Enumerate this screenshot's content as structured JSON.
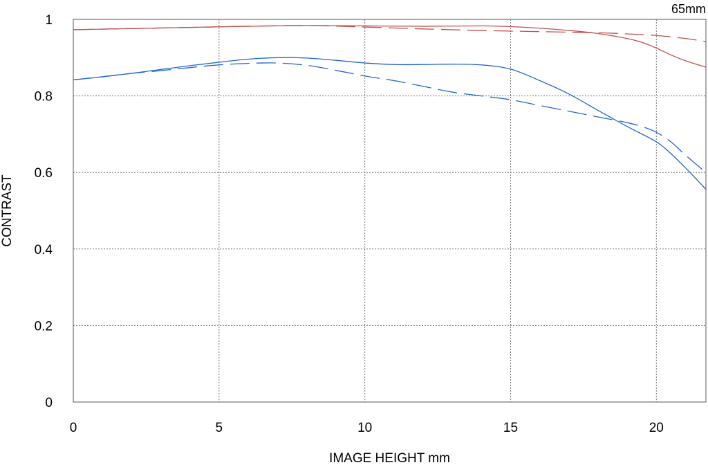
{
  "chart_data": {
    "type": "line",
    "title": "",
    "corner_label": "65mm",
    "xlabel": "IMAGE HEIGHT  mm",
    "ylabel": "CONTRAST",
    "xlim": [
      0,
      21.7
    ],
    "ylim": [
      0,
      1
    ],
    "x_ticks": [
      0,
      5,
      10,
      15,
      20
    ],
    "x_tick_labels": [
      "0",
      "5",
      "10",
      "15",
      "20"
    ],
    "y_ticks": [
      0,
      0.2,
      0.4,
      0.6,
      0.8,
      1
    ],
    "y_tick_labels": [
      "0",
      "0.2",
      "0.4",
      "0.6",
      "0.8",
      "1"
    ],
    "grid": true,
    "legend": "none",
    "series": [
      {
        "color": "#c0504d",
        "dashed": false,
        "x": [
          0,
          2,
          4,
          6,
          8,
          10,
          12,
          14,
          15,
          16,
          17,
          18,
          19,
          19.5,
          20,
          20.5,
          21,
          21.7
        ],
        "y": [
          0.973,
          0.976,
          0.979,
          0.982,
          0.984,
          0.983,
          0.982,
          0.983,
          0.981,
          0.977,
          0.971,
          0.963,
          0.95,
          0.94,
          0.925,
          0.907,
          0.892,
          0.875
        ]
      },
      {
        "color": "#c0504d",
        "dashed": true,
        "x": [
          0,
          2,
          4,
          6,
          8,
          10,
          12,
          14,
          16,
          18,
          19,
          20,
          21,
          21.7
        ],
        "y": [
          0.973,
          0.976,
          0.979,
          0.982,
          0.984,
          0.98,
          0.975,
          0.971,
          0.968,
          0.965,
          0.962,
          0.958,
          0.95,
          0.942
        ]
      },
      {
        "color": "#2266cc",
        "dashed": false,
        "x": [
          0,
          1,
          2,
          3,
          4,
          5,
          6,
          7,
          8,
          9,
          10,
          11,
          12,
          13,
          14,
          15,
          16,
          17,
          18,
          19,
          20,
          20.5,
          21,
          21.7
        ],
        "y": [
          0.842,
          0.85,
          0.859,
          0.869,
          0.879,
          0.888,
          0.896,
          0.9,
          0.899,
          0.893,
          0.886,
          0.882,
          0.882,
          0.883,
          0.881,
          0.87,
          0.84,
          0.805,
          0.762,
          0.72,
          0.68,
          0.649,
          0.612,
          0.556
        ]
      },
      {
        "color": "#2266cc",
        "dashed": true,
        "x": [
          0,
          1,
          2,
          3,
          4,
          5,
          6,
          7,
          8,
          9,
          10,
          11,
          12,
          13,
          14,
          15,
          16,
          17,
          18,
          19,
          19.5,
          20,
          20.5,
          21,
          21.7
        ],
        "y": [
          0.842,
          0.85,
          0.859,
          0.866,
          0.874,
          0.881,
          0.885,
          0.886,
          0.88,
          0.867,
          0.852,
          0.84,
          0.825,
          0.81,
          0.8,
          0.79,
          0.775,
          0.76,
          0.745,
          0.73,
          0.72,
          0.705,
          0.68,
          0.645,
          0.6
        ]
      }
    ]
  }
}
